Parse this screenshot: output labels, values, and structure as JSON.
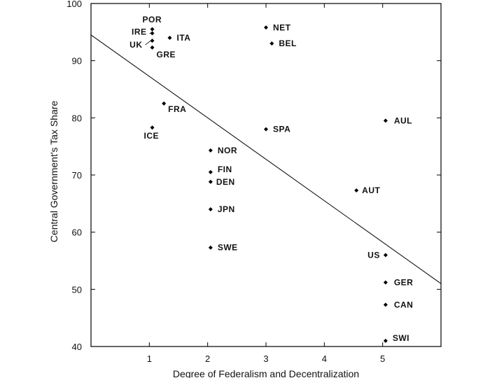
{
  "chart_data": {
    "type": "scatter",
    "title": "",
    "xlabel": "Degree of Federalism and Decentralization",
    "ylabel": "Central Government's Tax Share",
    "xlim": [
      0,
      6
    ],
    "ylim": [
      40,
      100
    ],
    "x_ticks": [
      "1",
      "2",
      "3",
      "4",
      "5"
    ],
    "y_ticks": [
      "40",
      "50",
      "60",
      "70",
      "80",
      "90",
      "100"
    ],
    "grid": false,
    "points": [
      {
        "label": "POR",
        "x": 1.05,
        "y": 95.5
      },
      {
        "label": "IRE",
        "x": 1.05,
        "y": 94.8
      },
      {
        "label": "ITA",
        "x": 1.35,
        "y": 94.0
      },
      {
        "label": "UK",
        "x": 1.05,
        "y": 93.5
      },
      {
        "label": "GRE",
        "x": 1.05,
        "y": 92.3
      },
      {
        "label": "FRA",
        "x": 1.25,
        "y": 82.5
      },
      {
        "label": "ICE",
        "x": 1.05,
        "y": 78.3
      },
      {
        "label": "NET",
        "x": 3.0,
        "y": 95.8
      },
      {
        "label": "BEL",
        "x": 3.1,
        "y": 93.0
      },
      {
        "label": "SPA",
        "x": 3.0,
        "y": 78.0
      },
      {
        "label": "NOR",
        "x": 2.05,
        "y": 74.3
      },
      {
        "label": "FIN",
        "x": 2.05,
        "y": 70.5
      },
      {
        "label": "DEN",
        "x": 2.05,
        "y": 68.8
      },
      {
        "label": "JPN",
        "x": 2.05,
        "y": 64.0
      },
      {
        "label": "SWE",
        "x": 2.05,
        "y": 57.3
      },
      {
        "label": "AUL",
        "x": 5.05,
        "y": 79.5
      },
      {
        "label": "AUT",
        "x": 4.55,
        "y": 67.3
      },
      {
        "label": "US",
        "x": 5.05,
        "y": 56.0
      },
      {
        "label": "GER",
        "x": 5.05,
        "y": 51.2
      },
      {
        "label": "CAN",
        "x": 5.05,
        "y": 47.3
      },
      {
        "label": "SWI",
        "x": 5.05,
        "y": 41.0
      }
    ],
    "fit_line": {
      "x": [
        0,
        6
      ],
      "y": [
        94.5,
        51.0
      ]
    }
  }
}
